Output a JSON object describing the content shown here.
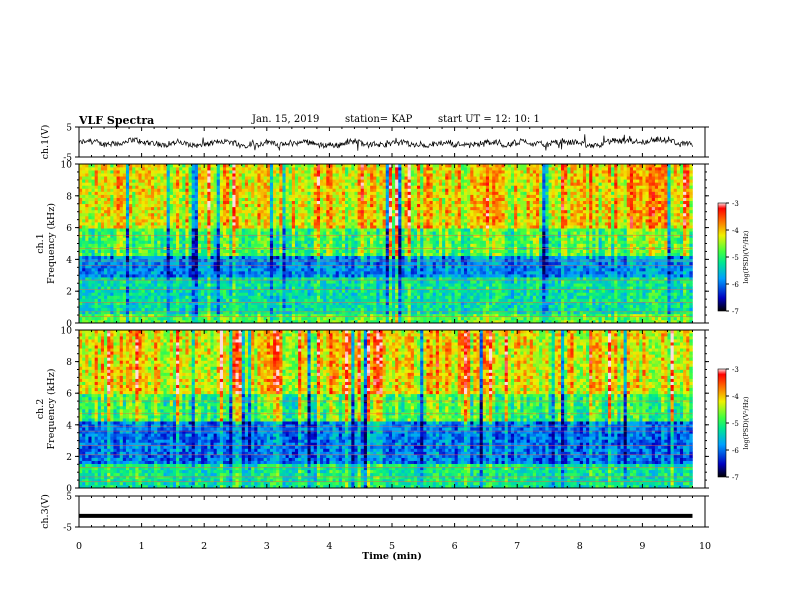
{
  "header": {
    "title": "VLF Spectra",
    "date": "Jan. 15, 2019",
    "station": "station= KAP",
    "start": "start  UT  =   12: 10: 1"
  },
  "chart_data": {
    "type": "heatmap",
    "xlabel": "Time  (min)",
    "xlim": [
      0,
      10
    ],
    "x_ticks": [
      "0",
      "1",
      "2",
      "3",
      "4",
      "5",
      "6",
      "7",
      "8",
      "9",
      "10"
    ],
    "panels": [
      {
        "id": "ch1-waveform",
        "type": "line",
        "ylabel": "ch.1(V)",
        "ylim": [
          -5,
          5
        ],
        "y_ticks": [
          "5",
          "-5"
        ],
        "description_level": "noisy signal fluctuating roughly between -2 and 2 V around -0.5 V",
        "series": [
          {
            "x_range": [
              0,
              9.8
            ],
            "approx_mean": -0.5,
            "approx_amplitude": 1.8
          }
        ]
      },
      {
        "id": "ch1-spectrogram",
        "type": "heatmap",
        "ylabel": "ch.1\nFrequency  (kHz)",
        "ylim": [
          0,
          10
        ],
        "y_ticks": [
          "0",
          "2",
          "4",
          "6",
          "8",
          "10"
        ],
        "data_x_range": [
          0,
          9.8
        ],
        "band_levels": [
          {
            "freq_khz": [
              6,
              10
            ],
            "log_psd": -4.2
          },
          {
            "freq_khz": [
              4.2,
              6
            ],
            "log_psd": -4.9
          },
          {
            "freq_khz": [
              2.8,
              4.2
            ],
            "log_psd": -5.9
          },
          {
            "freq_khz": [
              0.5,
              2.8
            ],
            "log_psd": -5.3
          },
          {
            "freq_khz": [
              0,
              0.5
            ],
            "log_psd": -4.8
          }
        ],
        "colorbar": {
          "label": "log(PSD)(V²/Hz)",
          "range": [
            -7,
            -3
          ],
          "ticks": [
            "-3",
            "-4",
            "-5",
            "-6",
            "-7"
          ]
        }
      },
      {
        "id": "ch2-spectrogram",
        "type": "heatmap",
        "ylabel": "ch.2\nFrequency  (kHz)",
        "ylim": [
          0,
          10
        ],
        "y_ticks": [
          "0",
          "2",
          "4",
          "6",
          "8",
          "10"
        ],
        "data_x_range": [
          0,
          9.8
        ],
        "band_levels": [
          {
            "freq_khz": [
              6,
              10
            ],
            "log_psd": -4.2
          },
          {
            "freq_khz": [
              4.2,
              6
            ],
            "log_psd": -4.9
          },
          {
            "freq_khz": [
              1.5,
              4.2
            ],
            "log_psd": -6.0
          },
          {
            "freq_khz": [
              0,
              1.5
            ],
            "log_psd": -5.2
          }
        ],
        "colorbar": {
          "label": "log(PSD)(V²/Hz)",
          "range": [
            -7,
            -3
          ],
          "ticks": [
            "-3",
            "-4",
            "-5",
            "-6",
            "-7"
          ]
        }
      },
      {
        "id": "ch3-waveform",
        "type": "line",
        "ylabel": "ch.3(V)",
        "ylim": [
          -5,
          5
        ],
        "y_ticks": [
          "5",
          "-5"
        ],
        "series": [
          {
            "x_range": [
              0,
              9.8
            ],
            "constant_value": -1.4
          }
        ]
      }
    ],
    "colormap": [
      "#000080",
      "#0000ff",
      "#00a0ff",
      "#00e0c0",
      "#40ff40",
      "#c0ff00",
      "#ffe000",
      "#ff8000",
      "#ff0000",
      "#ffffff"
    ]
  }
}
